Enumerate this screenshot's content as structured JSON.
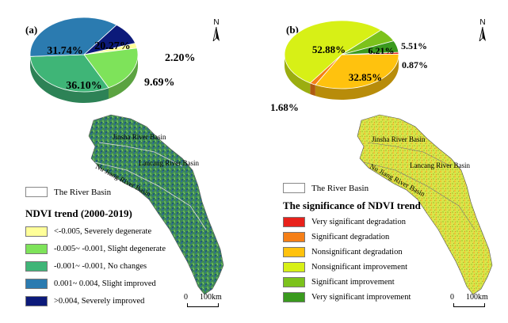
{
  "panel_a": {
    "label": "(a)",
    "legend_title": "NDVI trend (2000-2019)",
    "boundary_label": "The River Basin",
    "basins": [
      "Jinsha River Basin",
      "Lancang River Basin",
      "Nu Jiang River Basin"
    ],
    "north": "N",
    "scale": {
      "zero": "0",
      "distance": "100km"
    },
    "chart_data": {
      "type": "pie",
      "slices": [
        {
          "label": "<-0.005, Severely degenerate",
          "value": 2.2,
          "text": "2.20%",
          "color": "#ffff99"
        },
        {
          "label": "-0.005~ -0.001, Slight degenerate",
          "value": 20.27,
          "text": "20.27%",
          "color": "#7ee35a"
        },
        {
          "label": "-0.001~ -0.001, No changes",
          "value": 31.74,
          "text": "31.74%",
          "color": "#3fb577"
        },
        {
          "label": "0.001~ 0.004, Slight improved",
          "value": 36.1,
          "text": "36.10%",
          "color": "#2b7bb0"
        },
        {
          "label": ">0.004, Severely improved",
          "value": 9.69,
          "text": "9.69%",
          "color": "#0c1a7a"
        }
      ]
    }
  },
  "panel_b": {
    "label": "(b)",
    "legend_title": "The significance of NDVI trend",
    "boundary_label": "The River Basin",
    "basins": [
      "Jinsha River Basin",
      "Lancang River Basin",
      "Nu Jiang River Basin"
    ],
    "north": "N",
    "scale": {
      "zero": "0",
      "distance": "100km"
    },
    "legend_items": [
      {
        "label": "Very significant degradation",
        "color": "#e8211b"
      },
      {
        "label": "Significant degradation",
        "color": "#f57f17"
      },
      {
        "label": "Nonsignificant degradation",
        "color": "#ffc20e"
      },
      {
        "label": "Nonsignificant improvement",
        "color": "#d7f016"
      },
      {
        "label": "Significant improvement",
        "color": "#7cc21c"
      },
      {
        "label": "Very significant improvement",
        "color": "#3a9a1e"
      }
    ],
    "chart_data": {
      "type": "pie",
      "slices": [
        {
          "label": "Very significant degradation",
          "value": 0.87,
          "text": "0.87%",
          "color": "#e8211b"
        },
        {
          "label": "Nonsignificant degradation",
          "value": 32.85,
          "text": "32.85%",
          "color": "#ffc20e"
        },
        {
          "label": "Significant degradation",
          "value": 1.68,
          "text": "1.68%",
          "color": "#f57f17"
        },
        {
          "label": "Nonsignificant improvement",
          "value": 52.88,
          "text": "52.88%",
          "color": "#d7f016"
        },
        {
          "label": "Significant improvement",
          "value": 6.21,
          "text": "6.21%",
          "color": "#7cc21c"
        },
        {
          "label": "Very significant improvement",
          "value": 5.51,
          "text": "5.51%",
          "color": "#3a9a1e"
        }
      ]
    }
  }
}
